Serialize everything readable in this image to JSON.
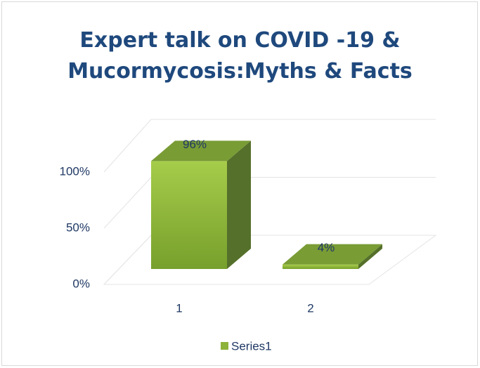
{
  "chart_data": {
    "type": "bar3d",
    "title": "Expert talk on COVID -19 & Mucormycosis:Myths & Facts",
    "categories": [
      "1",
      "2"
    ],
    "series": [
      {
        "name": "Series1",
        "color": "#8db33a",
        "values": [
          96,
          4
        ],
        "value_labels": [
          "96%",
          "4%"
        ]
      }
    ],
    "ylim": [
      0,
      100
    ],
    "yticks": [
      {
        "value": 0,
        "label": "0%"
      },
      {
        "value": 50,
        "label": "50%"
      },
      {
        "value": 100,
        "label": "100%"
      }
    ],
    "grid": true,
    "legend": "bottom"
  }
}
